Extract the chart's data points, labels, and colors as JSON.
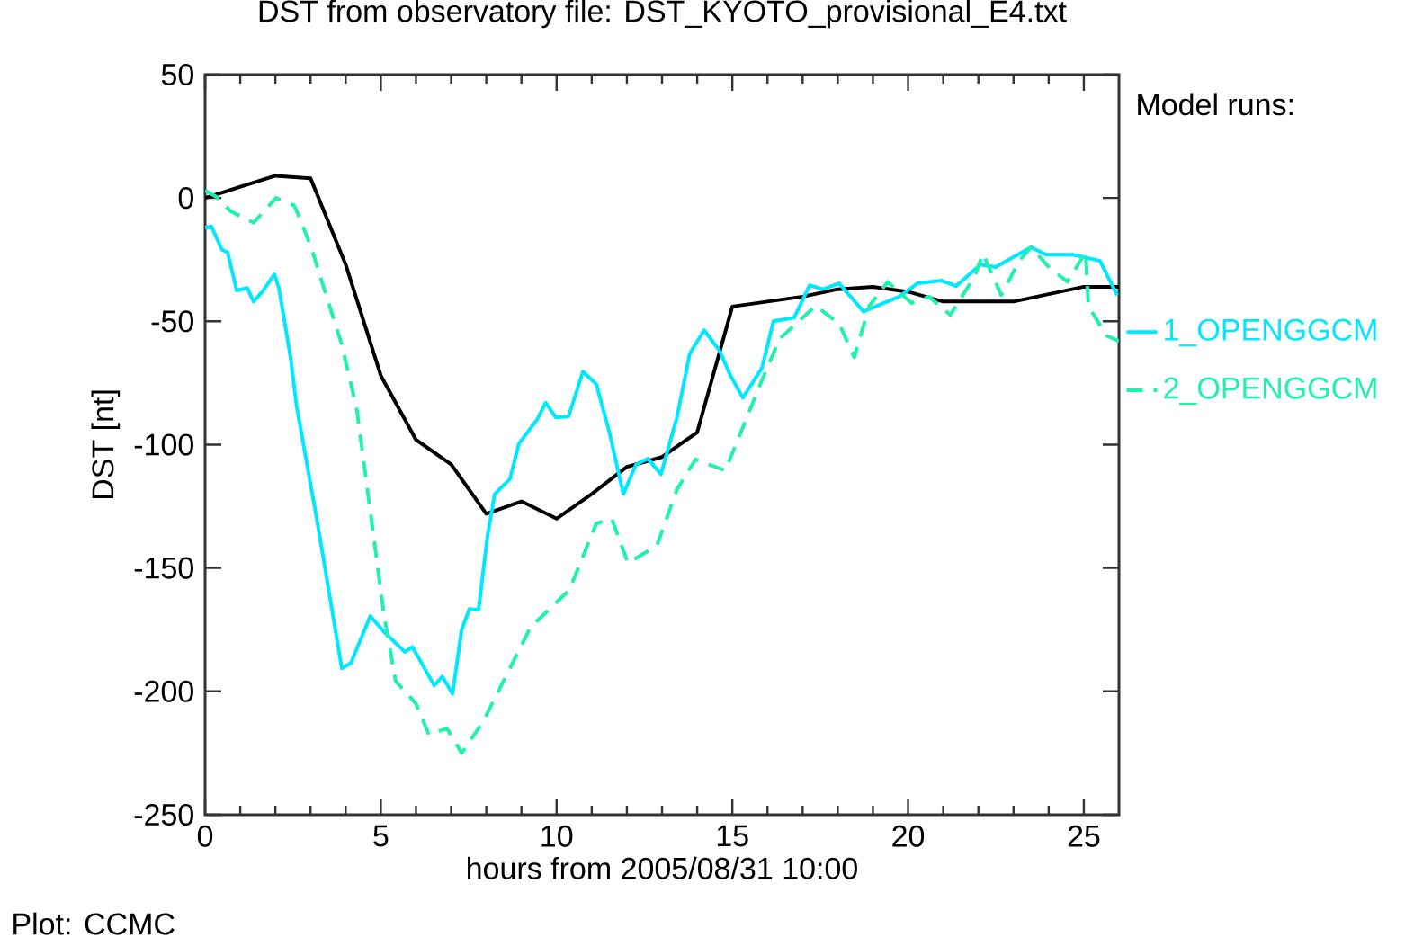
{
  "chart_data": {
    "type": "line",
    "title": "DST from observatory file: DST_KYOTO_provisional_E4.txt",
    "xlabel": "hours from 2005/08/31 10:00",
    "ylabel": "DST [nt]",
    "legend_title": "Model runs:",
    "legend": "right",
    "annotations": [
      "Plot: CCMC"
    ],
    "xlim": [
      0,
      26
    ],
    "ylim": [
      -250,
      50
    ],
    "xticks": [
      0,
      5,
      10,
      15,
      20,
      25
    ],
    "yticks": [
      -250,
      -200,
      -150,
      -100,
      -50,
      0,
      50
    ],
    "series": [
      {
        "color": "#000000",
        "line_style": "solid",
        "x": [
          0,
          2,
          3,
          4,
          5,
          6,
          7,
          8,
          9,
          10,
          11,
          12,
          13,
          14,
          15,
          16,
          17,
          18,
          19,
          20,
          21,
          22,
          23,
          24,
          25,
          26
        ],
        "values": [
          0,
          9,
          8,
          -27,
          -72,
          -98,
          -108,
          -128,
          -123,
          -130,
          -120,
          -109,
          -105,
          -95,
          -44,
          -42,
          -40,
          -37,
          -36,
          -38,
          -42,
          -42,
          -42,
          -39,
          -36,
          -36
        ]
      },
      {
        "name": "1_OPENGGCM",
        "color": "#00e8ff",
        "line_style": "solid",
        "x": [
          0,
          0.18,
          0.48,
          0.64,
          0.9,
          1.2,
          1.38,
          1.63,
          1.97,
          2.1,
          2.43,
          2.6,
          3.2,
          3.89,
          4.15,
          4.7,
          5.1,
          5.68,
          5.9,
          6.52,
          6.75,
          7.04,
          7.3,
          7.52,
          7.78,
          8.03,
          8.24,
          8.67,
          8.93,
          9.44,
          9.69,
          9.98,
          10.34,
          10.75,
          11.13,
          11.5,
          11.9,
          12.26,
          12.6,
          12.97,
          13.43,
          13.79,
          14.2,
          14.64,
          14.94,
          15.3,
          15.84,
          16.17,
          16.76,
          17.2,
          17.58,
          18.04,
          18.73,
          19.75,
          20.27,
          20.95,
          21.37,
          22.06,
          22.49,
          23.5,
          23.93,
          24.7,
          25.46,
          25.95
        ],
        "values": [
          -12,
          -11.5,
          -21,
          -22,
          -37.5,
          -36.5,
          -42,
          -38,
          -31,
          -36.5,
          -64.5,
          -84,
          -132,
          -190.7,
          -188.5,
          -169.5,
          -176,
          -184,
          -182,
          -197.6,
          -194,
          -201,
          -175,
          -166.6,
          -167,
          -137.4,
          -120,
          -114,
          -99.5,
          -90,
          -83,
          -89,
          -88.6,
          -70.4,
          -75.5,
          -94.8,
          -120,
          -108,
          -105.7,
          -112,
          -88.6,
          -63,
          -53.6,
          -62,
          -71.8,
          -81,
          -69,
          -50,
          -48.5,
          -35.4,
          -37,
          -34.6,
          -46,
          -40,
          -34.6,
          -33.5,
          -35.7,
          -27,
          -28,
          -20,
          -23,
          -23,
          -25.5,
          -39.4
        ]
      },
      {
        "name": "2_OPENGGCM",
        "color": "#20f0b0",
        "line_style": "dashed",
        "x": [
          0,
          0.3,
          0.74,
          1.38,
          2.02,
          2.53,
          2.69,
          3.04,
          3.38,
          3.89,
          4.32,
          4.91,
          5.09,
          5.42,
          6.0,
          6.37,
          6.88,
          7.3,
          7.9,
          8.67,
          9.26,
          10.36,
          11.13,
          11.57,
          12.03,
          12.85,
          13.43,
          13.95,
          14.8,
          15.84,
          16.35,
          17.37,
          18.04,
          18.47,
          18.9,
          19.42,
          20.1,
          20.6,
          21.2,
          21.9,
          22.13,
          22.65,
          23.16,
          23.5,
          24.03,
          24.54,
          25.05,
          25.13,
          25.64,
          26
        ],
        "values": [
          3,
          0.7,
          -5.5,
          -10,
          0,
          -3,
          -8,
          -21,
          -36.5,
          -59.4,
          -86,
          -149.5,
          -169,
          -195.8,
          -205,
          -217.6,
          -215,
          -225,
          -212.5,
          -190.7,
          -174,
          -159,
          -132,
          -130,
          -148,
          -141,
          -118,
          -106,
          -110.5,
          -74,
          -57,
          -43.7,
          -51,
          -64.5,
          -43.7,
          -34,
          -42.6,
          -40,
          -47.4,
          -31.7,
          -22.6,
          -39.4,
          -25.5,
          -20,
          -28.4,
          -34,
          -22,
          -43.7,
          -55.8,
          -58
        ]
      }
    ]
  }
}
